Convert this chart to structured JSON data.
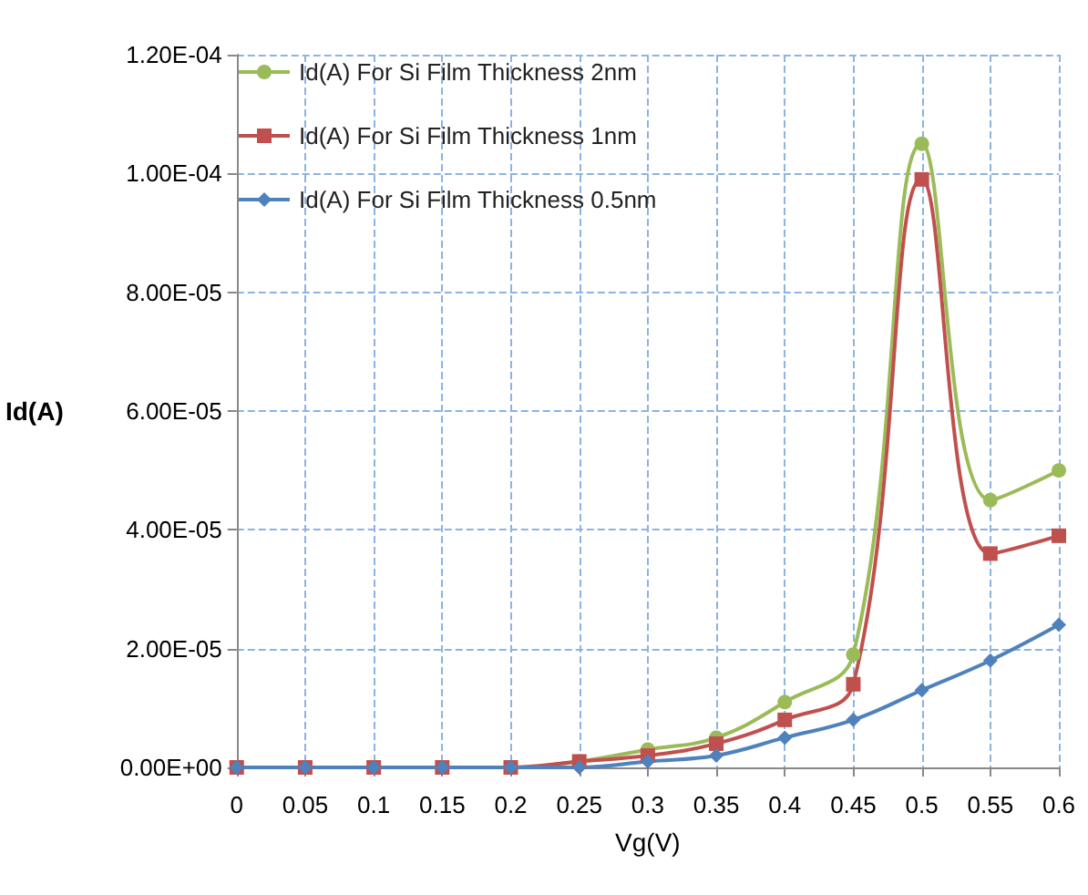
{
  "chart_data": {
    "type": "line",
    "xlabel": "Vg(V)",
    "ylabel": "Id(A)",
    "x": [
      0,
      0.05,
      0.1,
      0.15,
      0.2,
      0.25,
      0.3,
      0.35,
      0.4,
      0.45,
      0.5,
      0.55,
      0.6
    ],
    "series": [
      {
        "name": "Id(A) For Si Film Thickness 2nm",
        "color": "#9bbb59",
        "marker": "circle",
        "values": [
          null,
          null,
          null,
          0,
          0,
          1e-06,
          3e-06,
          5e-06,
          1.1e-05,
          1.9e-05,
          0.000105,
          4.5e-05,
          5e-05
        ]
      },
      {
        "name": "Id(A) For Si Film Thickness 1nm",
        "color": "#c0504d",
        "marker": "square",
        "values": [
          0,
          0,
          0,
          0,
          0,
          1e-06,
          2e-06,
          4e-06,
          8e-06,
          1.4e-05,
          9.9e-05,
          3.6e-05,
          3.9e-05
        ]
      },
      {
        "name": "Id(A) For Si Film Thickness 0.5nm",
        "color": "#4f81bd",
        "marker": "diamond",
        "values": [
          0,
          0,
          0,
          0,
          0,
          0,
          1e-06,
          2e-06,
          5e-06,
          8e-06,
          1.3e-05,
          1.8e-05,
          2.4e-05
        ]
      }
    ],
    "xlim": [
      0,
      0.6
    ],
    "xticks": [
      0,
      0.05,
      0.1,
      0.15,
      0.2,
      0.25,
      0.3,
      0.35,
      0.4,
      0.45,
      0.5,
      0.55,
      0.6
    ],
    "ylim": [
      0,
      0.00012
    ],
    "yticks": [
      {
        "value": 0,
        "label": "0.00E+00"
      },
      {
        "value": 2e-05,
        "label": "2.00E-05"
      },
      {
        "value": 4e-05,
        "label": "4.00E-05"
      },
      {
        "value": 6e-05,
        "label": "6.00E-05"
      },
      {
        "value": 8e-05,
        "label": "8.00E-05"
      },
      {
        "value": 0.0001,
        "label": "1.00E-04"
      },
      {
        "value": 0.00012,
        "label": "1.20E-04"
      }
    ],
    "grid": true,
    "legend": "top left",
    "line_style": "solid"
  }
}
